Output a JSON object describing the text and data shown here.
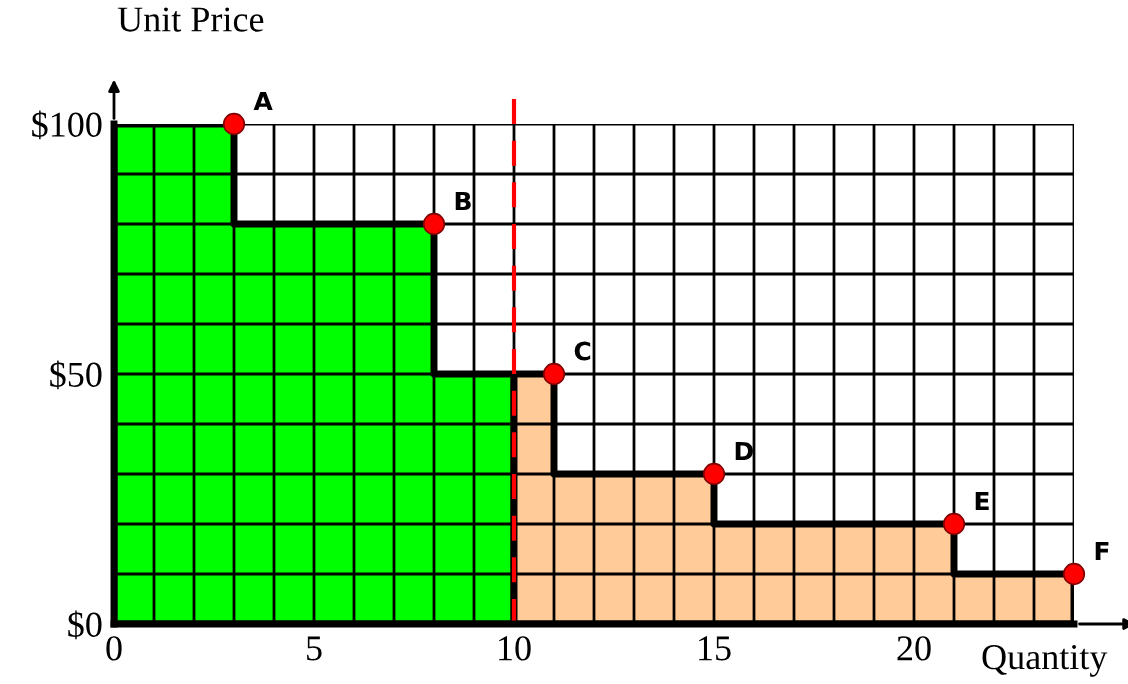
{
  "chart_data": {
    "type": "area",
    "xlabel": "Quantity",
    "ylabel": "Unit Price",
    "series": [
      {
        "x": [
          0,
          3,
          3,
          8,
          8,
          10
        ],
        "values": [
          100,
          100,
          80,
          80,
          50,
          50
        ],
        "color": "#00ff00"
      },
      {
        "x": [
          10,
          11,
          11,
          15,
          15,
          21,
          21,
          24
        ],
        "values": [
          50,
          50,
          30,
          30,
          20,
          20,
          10,
          10
        ],
        "color": "#ffcc99"
      },
      {
        "type": "scatter",
        "x": [
          3,
          8,
          11,
          15,
          21,
          24
        ],
        "values": [
          100,
          80,
          50,
          30,
          20,
          10
        ],
        "color": "#ff0000",
        "marker": "circle"
      }
    ],
    "annotations": [
      {
        "text": "A",
        "x": 3,
        "y": 100
      },
      {
        "text": "B",
        "x": 8,
        "y": 80
      },
      {
        "text": "C",
        "x": 11,
        "y": 50
      },
      {
        "text": "D",
        "x": 15,
        "y": 30
      },
      {
        "text": "E",
        "x": 21,
        "y": 20
      },
      {
        "text": "F",
        "x": 24,
        "y": 10
      }
    ],
    "ref_lines": [
      {
        "axis": "x",
        "value": 10,
        "color": "#ff0000",
        "line_style": "dashed"
      }
    ],
    "xlim": [
      0,
      24
    ],
    "ylim": [
      0,
      100
    ],
    "xticks": [
      0,
      {
        "value": 1,
        "label": null
      },
      {
        "value": 2,
        "label": null
      },
      {
        "value": 3,
        "label": null
      },
      {
        "value": 4,
        "label": null
      },
      5,
      {
        "value": 6,
        "label": null
      },
      {
        "value": 7,
        "label": null
      },
      {
        "value": 8,
        "label": null
      },
      {
        "value": 9,
        "label": null
      },
      10,
      {
        "value": 11,
        "label": null
      },
      {
        "value": 12,
        "label": null
      },
      {
        "value": 13,
        "label": null
      },
      {
        "value": 14,
        "label": null
      },
      15,
      {
        "value": 16,
        "label": null
      },
      {
        "value": 17,
        "label": null
      },
      {
        "value": 18,
        "label": null
      },
      {
        "value": 19,
        "label": null
      },
      20,
      {
        "value": 21,
        "label": null
      },
      {
        "value": 22,
        "label": null
      },
      {
        "value": 23,
        "label": null
      },
      {
        "value": 24,
        "label": null
      }
    ],
    "yticks": [
      {
        "value": 0,
        "label": "$0"
      },
      {
        "value": 10,
        "label": null
      },
      {
        "value": 20,
        "label": null
      },
      {
        "value": 30,
        "label": null
      },
      {
        "value": 40,
        "label": null
      },
      {
        "value": 50,
        "label": "$50"
      },
      {
        "value": 60,
        "label": null
      },
      {
        "value": 70,
        "label": null
      },
      {
        "value": 80,
        "label": null
      },
      {
        "value": 90,
        "label": null
      },
      {
        "value": 100,
        "label": "$100"
      }
    ],
    "grid": true
  }
}
